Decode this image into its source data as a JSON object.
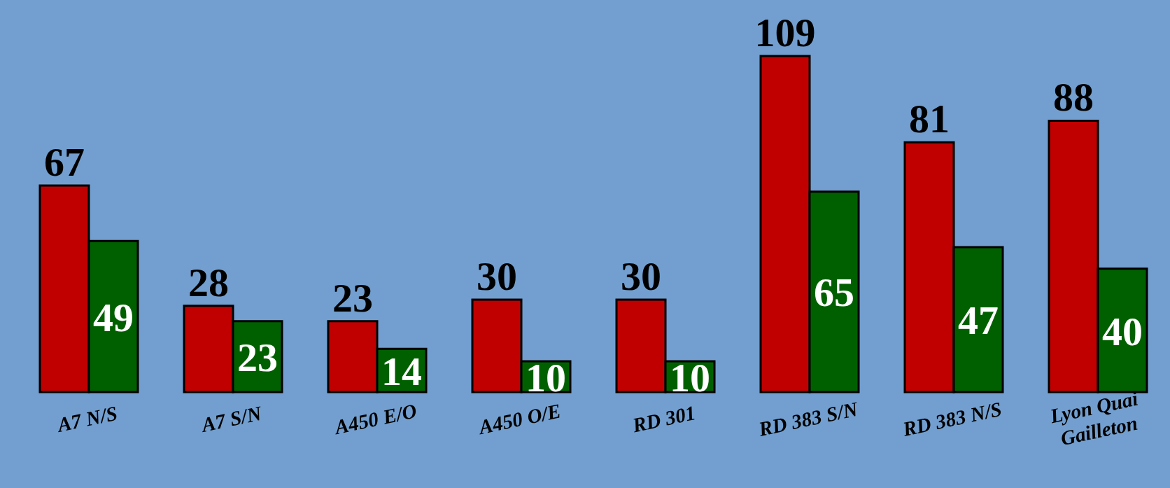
{
  "chart_data": {
    "type": "bar",
    "categories": [
      "A7 N/S",
      "A7 S/N",
      "A450 E/O",
      "A450 O/E",
      "RD 301",
      "RD 383 S/N",
      "RD 383 N/S",
      "Lyon Quai\nGailleton"
    ],
    "series": [
      {
        "color": "#c00000",
        "values": [
          67,
          28,
          23,
          30,
          30,
          109,
          81,
          88
        ]
      },
      {
        "color": "#006000",
        "values": [
          49,
          23,
          14,
          10,
          10,
          65,
          47,
          40
        ]
      }
    ],
    "data_labels": true
  }
}
